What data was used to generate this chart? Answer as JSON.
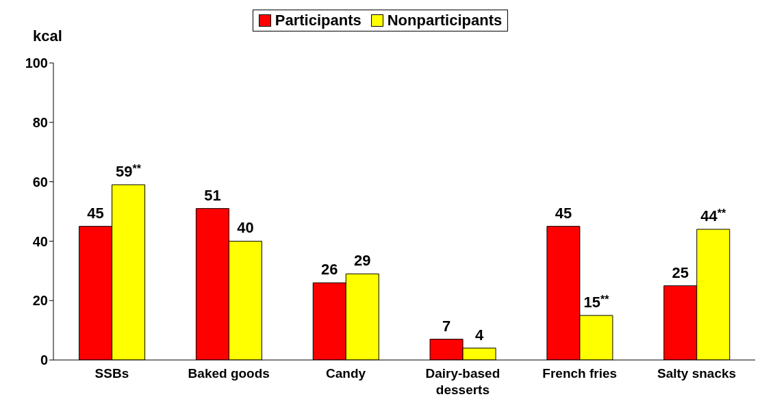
{
  "chart_data": {
    "type": "bar",
    "ylabel": "kcal",
    "categories": [
      "SSBs",
      "Baked goods",
      "Candy",
      "Dairy-based desserts",
      "French fries",
      "Salty snacks"
    ],
    "series": [
      {
        "name": "Participants",
        "color": "#ff0000",
        "values": [
          45,
          51,
          26,
          7,
          45,
          25
        ],
        "value_labels": [
          "45",
          "51",
          "26",
          "7",
          "45",
          "25"
        ]
      },
      {
        "name": "Nonparticipants",
        "color": "#ffff00",
        "values": [
          59,
          40,
          29,
          4,
          15,
          44
        ],
        "value_labels": [
          "59$^{**}$",
          "40",
          "29",
          "4",
          "15$^{**}$",
          "44$^{**}$"
        ]
      }
    ],
    "ylim": [
      0,
      100
    ],
    "yticks": [
      0,
      20,
      40,
      60,
      80,
      100
    ],
    "grid": false,
    "legend": "top"
  }
}
